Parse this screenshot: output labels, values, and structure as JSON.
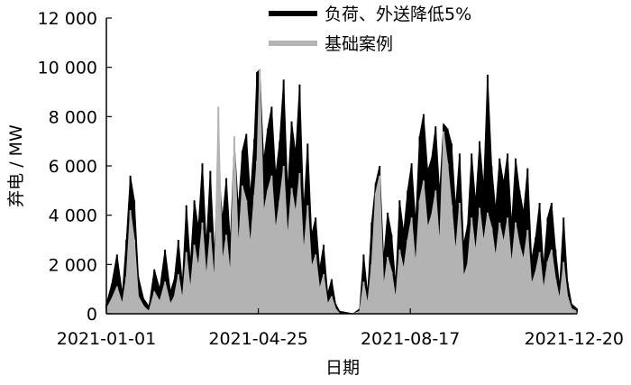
{
  "chart_data": {
    "type": "area",
    "title": "",
    "xlabel": "日期",
    "ylabel": "弃电 / MW",
    "ylim": [
      0,
      12000
    ],
    "xlim": [
      "2021-01-01",
      "2021-12-20"
    ],
    "yticks": [
      0,
      2000,
      4000,
      6000,
      8000,
      10000,
      12000
    ],
    "ytick_labels": [
      "0",
      "2 000",
      "4 000",
      "6 000",
      "8 000",
      "10 000",
      "12 000"
    ],
    "xticks": [
      "2021-01-01",
      "2021-04-25",
      "2021-08-17",
      "2021-12-20"
    ],
    "grid": false,
    "legend_position": "top-right",
    "series": [
      {
        "name": "负荷、外送降低5%",
        "color": "#000000",
        "points": [
          [
            "2021-01-01",
            400
          ],
          [
            "2021-01-05",
            1200
          ],
          [
            "2021-01-09",
            2400
          ],
          [
            "2021-01-13",
            800
          ],
          [
            "2021-01-16",
            3000
          ],
          [
            "2021-01-19",
            5600
          ],
          [
            "2021-01-22",
            4600
          ],
          [
            "2021-01-25",
            1500
          ],
          [
            "2021-01-29",
            600
          ],
          [
            "2021-02-02",
            300
          ],
          [
            "2021-02-06",
            1800
          ],
          [
            "2021-02-10",
            1000
          ],
          [
            "2021-02-14",
            2600
          ],
          [
            "2021-02-18",
            900
          ],
          [
            "2021-02-21",
            1400
          ],
          [
            "2021-02-24",
            3000
          ],
          [
            "2021-02-27",
            1200
          ],
          [
            "2021-03-02",
            4400
          ],
          [
            "2021-03-05",
            2000
          ],
          [
            "2021-03-08",
            4600
          ],
          [
            "2021-03-11",
            3500
          ],
          [
            "2021-03-14",
            6100
          ],
          [
            "2021-03-17",
            2800
          ],
          [
            "2021-03-20",
            5800
          ],
          [
            "2021-03-23",
            2400
          ],
          [
            "2021-03-26",
            6300
          ],
          [
            "2021-03-29",
            3800
          ],
          [
            "2021-04-01",
            5500
          ],
          [
            "2021-04-04",
            2900
          ],
          [
            "2021-04-07",
            6900
          ],
          [
            "2021-04-10",
            4300
          ],
          [
            "2021-04-13",
            6600
          ],
          [
            "2021-04-16",
            7300
          ],
          [
            "2021-04-19",
            4800
          ],
          [
            "2021-04-22",
            7100
          ],
          [
            "2021-04-24",
            9800
          ],
          [
            "2021-04-26",
            9900
          ],
          [
            "2021-04-29",
            6200
          ],
          [
            "2021-05-02",
            7500
          ],
          [
            "2021-05-05",
            8400
          ],
          [
            "2021-05-08",
            5600
          ],
          [
            "2021-05-11",
            7000
          ],
          [
            "2021-05-14",
            9500
          ],
          [
            "2021-05-17",
            5000
          ],
          [
            "2021-05-20",
            7800
          ],
          [
            "2021-05-23",
            6500
          ],
          [
            "2021-05-26",
            9300
          ],
          [
            "2021-05-29",
            4200
          ],
          [
            "2021-06-01",
            6900
          ],
          [
            "2021-06-04",
            3200
          ],
          [
            "2021-06-07",
            3900
          ],
          [
            "2021-06-10",
            1800
          ],
          [
            "2021-06-13",
            2800
          ],
          [
            "2021-06-16",
            800
          ],
          [
            "2021-06-19",
            1400
          ],
          [
            "2021-06-22",
            400
          ],
          [
            "2021-06-25",
            100
          ],
          [
            "2021-07-05",
            0
          ],
          [
            "2021-07-10",
            200
          ],
          [
            "2021-07-13",
            2400
          ],
          [
            "2021-07-16",
            800
          ],
          [
            "2021-07-19",
            3700
          ],
          [
            "2021-07-22",
            5300
          ],
          [
            "2021-07-25",
            6000
          ],
          [
            "2021-07-28",
            2200
          ],
          [
            "2021-07-31",
            4100
          ],
          [
            "2021-08-03",
            3200
          ],
          [
            "2021-08-06",
            1200
          ],
          [
            "2021-08-09",
            4600
          ],
          [
            "2021-08-12",
            3300
          ],
          [
            "2021-08-15",
            5000
          ],
          [
            "2021-08-18",
            6100
          ],
          [
            "2021-08-21",
            3700
          ],
          [
            "2021-08-24",
            7200
          ],
          [
            "2021-08-27",
            8100
          ],
          [
            "2021-08-30",
            5800
          ],
          [
            "2021-09-02",
            6300
          ],
          [
            "2021-09-05",
            7600
          ],
          [
            "2021-09-08",
            4900
          ],
          [
            "2021-09-11",
            7700
          ],
          [
            "2021-09-14",
            7500
          ],
          [
            "2021-09-17",
            6900
          ],
          [
            "2021-09-20",
            4300
          ],
          [
            "2021-09-23",
            6500
          ],
          [
            "2021-09-26",
            2800
          ],
          [
            "2021-09-29",
            3600
          ],
          [
            "2021-10-02",
            6500
          ],
          [
            "2021-10-05",
            4500
          ],
          [
            "2021-10-08",
            7000
          ],
          [
            "2021-10-11",
            5100
          ],
          [
            "2021-10-14",
            9700
          ],
          [
            "2021-10-17",
            6000
          ],
          [
            "2021-10-20",
            4200
          ],
          [
            "2021-10-23",
            6300
          ],
          [
            "2021-10-26",
            5300
          ],
          [
            "2021-10-29",
            6500
          ],
          [
            "2021-11-01",
            3600
          ],
          [
            "2021-11-04",
            6300
          ],
          [
            "2021-11-07",
            5000
          ],
          [
            "2021-11-10",
            4100
          ],
          [
            "2021-11-13",
            5900
          ],
          [
            "2021-11-16",
            2200
          ],
          [
            "2021-11-19",
            3100
          ],
          [
            "2021-11-22",
            4500
          ],
          [
            "2021-11-25",
            1900
          ],
          [
            "2021-11-28",
            3900
          ],
          [
            "2021-12-01",
            4500
          ],
          [
            "2021-12-04",
            2600
          ],
          [
            "2021-12-07",
            1100
          ],
          [
            "2021-12-10",
            3900
          ],
          [
            "2021-12-13",
            1300
          ],
          [
            "2021-12-16",
            400
          ],
          [
            "2021-12-20",
            200
          ]
        ]
      },
      {
        "name": "基础案例",
        "color": "#b3b3b3",
        "points": [
          [
            "2021-01-01",
            200
          ],
          [
            "2021-01-05",
            600
          ],
          [
            "2021-01-09",
            1100
          ],
          [
            "2021-01-13",
            400
          ],
          [
            "2021-01-16",
            1500
          ],
          [
            "2021-01-19",
            4200
          ],
          [
            "2021-01-22",
            3000
          ],
          [
            "2021-01-25",
            700
          ],
          [
            "2021-01-29",
            300
          ],
          [
            "2021-02-02",
            100
          ],
          [
            "2021-02-06",
            900
          ],
          [
            "2021-02-10",
            500
          ],
          [
            "2021-02-14",
            1300
          ],
          [
            "2021-02-18",
            400
          ],
          [
            "2021-02-21",
            700
          ],
          [
            "2021-02-24",
            1600
          ],
          [
            "2021-02-27",
            600
          ],
          [
            "2021-03-02",
            2500
          ],
          [
            "2021-03-05",
            1000
          ],
          [
            "2021-03-08",
            2800
          ],
          [
            "2021-03-11",
            1900
          ],
          [
            "2021-03-14",
            3700
          ],
          [
            "2021-03-17",
            1500
          ],
          [
            "2021-03-20",
            3300
          ],
          [
            "2021-03-23",
            1300
          ],
          [
            "2021-03-26",
            8400
          ],
          [
            "2021-03-29",
            2100
          ],
          [
            "2021-04-01",
            3200
          ],
          [
            "2021-04-04",
            1600
          ],
          [
            "2021-04-07",
            7200
          ],
          [
            "2021-04-10",
            2700
          ],
          [
            "2021-04-13",
            5200
          ],
          [
            "2021-04-16",
            4600
          ],
          [
            "2021-04-19",
            2800
          ],
          [
            "2021-04-22",
            4800
          ],
          [
            "2021-04-24",
            6200
          ],
          [
            "2021-04-26",
            9900
          ],
          [
            "2021-04-29",
            4100
          ],
          [
            "2021-05-02",
            5000
          ],
          [
            "2021-05-05",
            5600
          ],
          [
            "2021-05-08",
            3400
          ],
          [
            "2021-05-11",
            4600
          ],
          [
            "2021-05-14",
            6000
          ],
          [
            "2021-05-17",
            3100
          ],
          [
            "2021-05-20",
            5100
          ],
          [
            "2021-05-23",
            4100
          ],
          [
            "2021-05-26",
            5700
          ],
          [
            "2021-05-29",
            2500
          ],
          [
            "2021-06-01",
            4400
          ],
          [
            "2021-06-04",
            1900
          ],
          [
            "2021-06-07",
            2400
          ],
          [
            "2021-06-10",
            1000
          ],
          [
            "2021-06-13",
            1600
          ],
          [
            "2021-06-16",
            400
          ],
          [
            "2021-06-19",
            700
          ],
          [
            "2021-06-22",
            200
          ],
          [
            "2021-06-25",
            0
          ],
          [
            "2021-07-05",
            0
          ],
          [
            "2021-07-10",
            100
          ],
          [
            "2021-07-13",
            1300
          ],
          [
            "2021-07-16",
            400
          ],
          [
            "2021-07-19",
            2000
          ],
          [
            "2021-07-22",
            4900
          ],
          [
            "2021-07-25",
            5600
          ],
          [
            "2021-07-28",
            1100
          ],
          [
            "2021-07-31",
            2300
          ],
          [
            "2021-08-03",
            1700
          ],
          [
            "2021-08-06",
            600
          ],
          [
            "2021-08-09",
            2600
          ],
          [
            "2021-08-12",
            1800
          ],
          [
            "2021-08-15",
            3000
          ],
          [
            "2021-08-18",
            3900
          ],
          [
            "2021-08-21",
            2000
          ],
          [
            "2021-08-24",
            4600
          ],
          [
            "2021-08-27",
            5400
          ],
          [
            "2021-08-30",
            3500
          ],
          [
            "2021-09-02",
            4000
          ],
          [
            "2021-09-05",
            5000
          ],
          [
            "2021-09-08",
            2800
          ],
          [
            "2021-09-11",
            7400
          ],
          [
            "2021-09-14",
            6100
          ],
          [
            "2021-09-17",
            4400
          ],
          [
            "2021-09-20",
            2500
          ],
          [
            "2021-09-23",
            4500
          ],
          [
            "2021-09-26",
            1500
          ],
          [
            "2021-09-29",
            2000
          ],
          [
            "2021-10-02",
            3900
          ],
          [
            "2021-10-05",
            2500
          ],
          [
            "2021-10-08",
            4300
          ],
          [
            "2021-10-11",
            2900
          ],
          [
            "2021-10-14",
            4100
          ],
          [
            "2021-10-17",
            3500
          ],
          [
            "2021-10-20",
            2300
          ],
          [
            "2021-10-23",
            3700
          ],
          [
            "2021-10-26",
            2900
          ],
          [
            "2021-10-29",
            3900
          ],
          [
            "2021-11-01",
            2000
          ],
          [
            "2021-11-04",
            3700
          ],
          [
            "2021-11-07",
            2800
          ],
          [
            "2021-11-10",
            2200
          ],
          [
            "2021-11-13",
            3400
          ],
          [
            "2021-11-16",
            1200
          ],
          [
            "2021-11-19",
            1700
          ],
          [
            "2021-11-22",
            2500
          ],
          [
            "2021-11-25",
            1000
          ],
          [
            "2021-11-28",
            2100
          ],
          [
            "2021-12-01",
            2600
          ],
          [
            "2021-12-04",
            1400
          ],
          [
            "2021-12-07",
            600
          ],
          [
            "2021-12-10",
            2100
          ],
          [
            "2021-12-13",
            700
          ],
          [
            "2021-12-16",
            200
          ],
          [
            "2021-12-20",
            100
          ]
        ]
      }
    ]
  }
}
